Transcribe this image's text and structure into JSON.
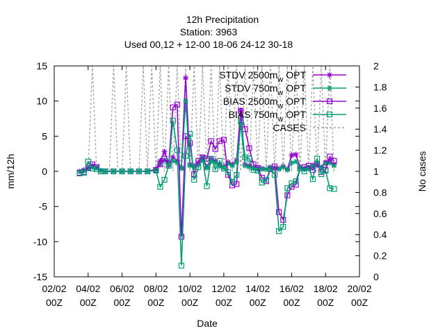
{
  "chart_data": {
    "type": "line",
    "title": "12h Precipitation",
    "subtitle_station": "Station:      3963",
    "subtitle_used": "Used  00,12  + 12-00 18-06 24-12 30-18",
    "xlabel": "Date",
    "ylabel": "mm/12h",
    "y2label": "No cases",
    "x_ticks": [
      "02/02 00Z",
      "04/02 00Z",
      "06/02 00Z",
      "08/02 00Z",
      "10/02 00Z",
      "12/02 00Z",
      "14/02 00Z",
      "16/02 00Z",
      "18/02 00Z",
      "20/02 00Z"
    ],
    "x_range_days": [
      2,
      20
    ],
    "ylim": [
      -15,
      15
    ],
    "y_ticks": [
      -15,
      -10,
      -5,
      0,
      5,
      10,
      15
    ],
    "y2lim": [
      0,
      2
    ],
    "y2_ticks": [
      "0",
      "0.2",
      "0.4",
      "0.6",
      "0.8",
      "1",
      "1.2",
      "1.4",
      "1.6",
      "1.8",
      "2"
    ],
    "legend_position": "top-right",
    "series": [
      {
        "name": "STDV 2500m",
        "legend_main": "STDV 2500m",
        "legend_sub": "w",
        "legend_tail": " OPT",
        "color": "#9400d3",
        "marker": "star",
        "x": [
          3.5,
          3.75,
          4.0,
          4.25,
          4.5,
          4.75,
          5.0,
          5.5,
          6.0,
          6.5,
          7.0,
          7.5,
          8.0,
          8.25,
          8.5,
          8.75,
          9.0,
          9.25,
          9.5,
          9.75,
          10.0,
          10.25,
          10.5,
          10.75,
          11.0,
          11.25,
          11.5,
          11.75,
          12.0,
          12.25,
          12.5,
          12.75,
          13.0,
          13.25,
          13.5,
          13.75,
          14.0,
          14.25,
          14.5,
          14.75,
          15.0,
          15.25,
          15.5,
          15.75,
          16.0,
          16.25,
          16.5,
          16.75,
          17.0,
          17.25,
          17.5,
          17.75,
          18.0,
          18.25,
          18.5
        ],
        "y": [
          0.0,
          0.2,
          0.5,
          0.8,
          0.6,
          0.1,
          0.0,
          0.0,
          0.0,
          0.0,
          0.0,
          0.0,
          0.3,
          1.5,
          2.8,
          1.2,
          2.0,
          1.5,
          0.5,
          13.3,
          1.0,
          0.8,
          1.2,
          2.0,
          0.6,
          1.8,
          1.5,
          0.9,
          0.7,
          1.3,
          1.0,
          1.6,
          8.7,
          1.0,
          0.8,
          0.5,
          0.5,
          0.4,
          0.3,
          0.6,
          0.5,
          0.4,
          0.7,
          0.3,
          2.3,
          2.4,
          0.6,
          0.4,
          0.5,
          0.9,
          1.1,
          0.6,
          1.3,
          1.5,
          1.0
        ]
      },
      {
        "name": "STDV 750m",
        "legend_main": "STDV 750m",
        "legend_sub": "w",
        "legend_tail": " OPT",
        "color": "#009e73",
        "marker": "star",
        "x": [
          3.5,
          3.75,
          4.0,
          4.25,
          4.5,
          4.75,
          5.0,
          5.5,
          6.0,
          6.5,
          7.0,
          7.5,
          8.0,
          8.25,
          8.5,
          8.75,
          9.0,
          9.25,
          9.5,
          9.75,
          10.0,
          10.25,
          10.5,
          10.75,
          11.0,
          11.25,
          11.5,
          11.75,
          12.0,
          12.25,
          12.5,
          12.75,
          13.0,
          13.25,
          13.5,
          13.75,
          14.0,
          14.25,
          14.5,
          14.75,
          15.0,
          15.25,
          15.5,
          15.75,
          16.0,
          16.25,
          16.5,
          16.75,
          17.0,
          17.25,
          17.5,
          17.75,
          18.0,
          18.25,
          18.5
        ],
        "y": [
          0.0,
          0.1,
          0.4,
          0.6,
          0.5,
          0.1,
          0.0,
          0.0,
          0.0,
          0.0,
          0.0,
          0.0,
          0.2,
          1.0,
          1.6,
          0.9,
          1.5,
          1.2,
          0.4,
          10.0,
          0.8,
          0.6,
          0.9,
          1.6,
          0.5,
          1.4,
          1.2,
          0.7,
          0.5,
          1.1,
          0.8,
          1.3,
          6.7,
          0.8,
          0.6,
          0.4,
          0.4,
          0.3,
          0.3,
          0.5,
          0.4,
          0.3,
          0.6,
          0.2,
          1.2,
          1.4,
          0.5,
          0.3,
          0.4,
          0.7,
          0.9,
          0.5,
          1.1,
          1.2,
          0.8
        ]
      },
      {
        "name": "BIAS 2500m",
        "legend_main": "BIAS 2500m",
        "legend_sub": "w",
        "legend_tail": " OPT",
        "color": "#9400d3",
        "marker": "square",
        "x": [
          3.5,
          3.75,
          4.0,
          4.25,
          4.5,
          4.75,
          5.0,
          5.5,
          6.0,
          6.5,
          7.0,
          7.5,
          8.0,
          8.25,
          8.5,
          8.75,
          9.0,
          9.25,
          9.5,
          9.75,
          10.0,
          10.25,
          10.5,
          10.75,
          11.0,
          11.25,
          11.5,
          11.75,
          12.0,
          12.25,
          12.5,
          12.75,
          13.0,
          13.25,
          13.5,
          13.75,
          14.0,
          14.25,
          14.5,
          14.75,
          15.0,
          15.25,
          15.5,
          15.75,
          16.0,
          16.25,
          16.5,
          16.75,
          17.0,
          17.25,
          17.5,
          17.75,
          18.0,
          18.25,
          18.5
        ],
        "y": [
          -0.2,
          -0.1,
          0.5,
          1.0,
          0.6,
          0.0,
          0.0,
          0.0,
          0.0,
          0.0,
          0.0,
          0.0,
          0.2,
          1.0,
          1.8,
          1.0,
          9.1,
          9.5,
          -9.3,
          5.0,
          4.0,
          -0.4,
          1.5,
          2.0,
          1.8,
          4.3,
          3.2,
          4.3,
          4.5,
          -0.5,
          -2.0,
          -1.8,
          8.6,
          6.0,
          3.3,
          1.0,
          0.5,
          -0.9,
          -1.4,
          0.3,
          0.7,
          -5.8,
          -6.9,
          -3.4,
          -2.2,
          -1.9,
          0.4,
          0.6,
          0.8,
          0.2,
          1.0,
          -0.1,
          0.2,
          2.1,
          1.5
        ]
      },
      {
        "name": "BIAS 750m",
        "legend_main": "BIAS 750m",
        "legend_sub": "w",
        "legend_tail": " OPT",
        "color": "#009e73",
        "marker": "square",
        "x": [
          3.5,
          3.75,
          4.0,
          4.25,
          4.5,
          4.75,
          5.0,
          5.5,
          6.0,
          6.5,
          7.0,
          7.5,
          8.0,
          8.25,
          8.5,
          8.75,
          9.0,
          9.25,
          9.5,
          9.75,
          10.0,
          10.25,
          10.5,
          10.75,
          11.0,
          11.25,
          11.5,
          11.75,
          12.0,
          12.25,
          12.5,
          12.75,
          13.0,
          13.25,
          13.5,
          13.75,
          14.0,
          14.25,
          14.5,
          14.75,
          15.0,
          15.25,
          15.5,
          15.75,
          16.0,
          16.25,
          16.5,
          16.75,
          17.0,
          17.25,
          17.5,
          17.75,
          18.0,
          18.25,
          18.5
        ],
        "y": [
          -0.3,
          -0.2,
          1.4,
          0.4,
          0.3,
          0.0,
          0.0,
          0.0,
          0.0,
          0.0,
          0.0,
          0.0,
          0.1,
          -2.2,
          -1.2,
          0.8,
          7.2,
          3.0,
          -13.4,
          2.2,
          5.3,
          -1.2,
          0.6,
          1.7,
          -2.1,
          1.8,
          0.3,
          1.5,
          0.4,
          -0.1,
          -1.5,
          -0.5,
          7.2,
          2.0,
          1.8,
          0.2,
          0.1,
          -1.6,
          -1.2,
          0.4,
          -0.5,
          -8.5,
          -7.9,
          -2.4,
          -1.7,
          -1.4,
          0.4,
          0.0,
          0.5,
          -1.1,
          1.8,
          -0.4,
          0.1,
          -2.4,
          -2.5
        ]
      },
      {
        "name": "CASES",
        "legend_main": "CASES",
        "legend_sub": "",
        "legend_tail": "",
        "color": "#a0a0a0",
        "marker": "none",
        "axis": "y2",
        "x": [
          3.5,
          3.75,
          4.0,
          4.25,
          4.5,
          4.75,
          5.0,
          5.25,
          5.5,
          5.75,
          6.0,
          6.25,
          6.5,
          6.75,
          7.0,
          7.25,
          7.5,
          7.75,
          8.0,
          8.25,
          8.5,
          8.75,
          9.0,
          9.25,
          9.5,
          9.75,
          10.0,
          10.25,
          10.5,
          10.75,
          11.0,
          11.25,
          11.5,
          11.75,
          12.0,
          12.25,
          12.5,
          12.75,
          13.0,
          13.25,
          13.5,
          13.75,
          14.0,
          14.25,
          14.5,
          14.75,
          15.0,
          15.25,
          15.5,
          15.75,
          16.0,
          16.25,
          16.5,
          16.75,
          17.0,
          17.25,
          17.5,
          17.75,
          18.0,
          18.25,
          18.5
        ],
        "y": [
          1,
          1,
          1,
          2,
          1,
          1,
          1,
          1,
          2,
          1,
          1,
          2,
          1,
          1,
          1,
          2,
          1,
          2,
          1,
          2,
          1,
          2,
          1,
          2,
          1,
          2,
          1,
          2,
          1,
          2,
          1,
          2,
          1,
          2,
          1,
          2,
          1,
          2,
          1,
          2,
          1,
          2,
          1,
          2,
          1,
          2,
          1,
          2,
          1,
          2,
          1,
          2,
          1,
          2,
          1,
          2,
          1,
          2,
          1,
          2,
          1
        ]
      }
    ]
  }
}
